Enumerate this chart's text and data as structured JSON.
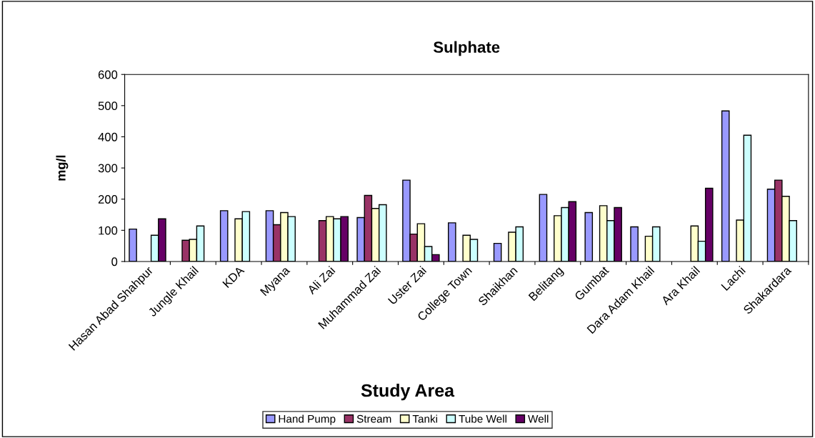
{
  "chart_data": {
    "type": "bar",
    "title": "Sulphate",
    "xlabel": "Study Area",
    "ylabel": "mg/l",
    "categories": [
      "Hasan Abad Shahpur",
      "Jungle Khail",
      "KDA",
      "Myana",
      "Ali Zai",
      "Muhammad Zai",
      "Uster Zai",
      "College Town",
      "Shaikhan",
      "Belitang",
      "Gumbat",
      "Dara Adam Khail",
      "Ara Khail",
      "Lachi",
      "Shakardara"
    ],
    "series": [
      {
        "name": "Hand Pump",
        "color": "#9999ff",
        "values": [
          104,
          null,
          163,
          163,
          null,
          141,
          261,
          124,
          58,
          215,
          157,
          111,
          null,
          483,
          232
        ]
      },
      {
        "name": "Stream",
        "color": "#993366",
        "values": [
          null,
          68,
          null,
          118,
          131,
          212,
          88,
          null,
          null,
          null,
          null,
          null,
          null,
          null,
          261
        ]
      },
      {
        "name": "Tanki",
        "color": "#ffffcc",
        "values": [
          null,
          71,
          137,
          157,
          144,
          170,
          121,
          84,
          94,
          147,
          179,
          81,
          114,
          133,
          209
        ]
      },
      {
        "name": "Tube Well",
        "color": "#ccffff",
        "values": [
          84,
          114,
          160,
          144,
          137,
          182,
          48,
          71,
          111,
          173,
          131,
          111,
          65,
          405,
          131
        ]
      },
      {
        "name": "Well",
        "color": "#660066",
        "values": [
          137,
          null,
          null,
          null,
          144,
          null,
          22,
          null,
          null,
          192,
          173,
          null,
          235,
          null,
          null
        ]
      }
    ],
    "ylim": [
      0,
      600
    ],
    "yticks": [
      0,
      100,
      200,
      300,
      400,
      500,
      600
    ],
    "grid": false,
    "legend": "bottom"
  }
}
